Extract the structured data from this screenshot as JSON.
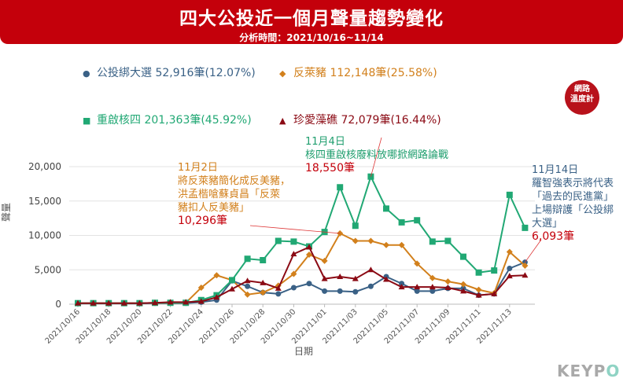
{
  "header": {
    "title": "四大公投近一個月聲量趨勢變化",
    "subtitle": "分析時間：2021/10/16~11/14"
  },
  "badge": {
    "line1": "網路",
    "line2": "溫度計"
  },
  "brand": {
    "text_a": "KEYP",
    "text_b": "O"
  },
  "annotations": [
    {
      "date": "11月2日",
      "lines": [
        "將反萊豬簡化成反美豬，",
        "洪孟楷嗆蘇貞昌「反萊",
        "豬扣人反美豬」"
      ],
      "count": "10,296筆",
      "color": "#d2801c"
    },
    {
      "date": "11月4日",
      "lines": [
        "核四重啟核廢料放哪掀網路論戰"
      ],
      "count": "18,550筆",
      "color": "#1f9e6e"
    },
    {
      "date": "11月14日",
      "lines": [
        "羅智強表示將代表",
        "「過去的民進黨」",
        "上場辯護「公投綁",
        "大選」"
      ],
      "count": "6,093筆",
      "color": "#3a6186"
    }
  ],
  "chart_data": {
    "type": "line",
    "title": "四大公投近一個月聲量趨勢變化",
    "xlabel": "日期",
    "ylabel": "聲量",
    "ylim": [
      0,
      20000
    ],
    "yticks": [
      0,
      5000,
      10000,
      15000,
      20000
    ],
    "ytick_labels": [
      "0",
      "5,000",
      "10,000",
      "15,000",
      "20,000"
    ],
    "x": [
      "2021/10/16",
      "2021/10/17",
      "2021/10/18",
      "2021/10/19",
      "2021/10/20",
      "2021/10/21",
      "2021/10/22",
      "2021/10/23",
      "2021/10/24",
      "2021/10/25",
      "2021/10/26",
      "2021/10/27",
      "2021/10/28",
      "2021/10/29",
      "2021/10/30",
      "2021/10/31",
      "2021/11/01",
      "2021/11/02",
      "2021/11/03",
      "2021/11/04",
      "2021/11/05",
      "2021/11/06",
      "2021/11/07",
      "2021/11/08",
      "2021/11/09",
      "2021/11/10",
      "2021/11/11",
      "2021/11/12",
      "2021/11/13",
      "2021/11/14"
    ],
    "xtick_labels": [
      "2021/10/16",
      "2021/10/18",
      "2021/10/20",
      "2021/10/22",
      "2021/10/24",
      "2021/10/26",
      "2021/10/28",
      "2021/10/30",
      "2021/11/01",
      "2021/11/03",
      "2021/11/05",
      "2021/11/07",
      "2021/11/09",
      "2021/11/11",
      "2021/11/13"
    ],
    "grid": true,
    "legend_position": "top",
    "series": [
      {
        "name": "公投綁大選",
        "summary": "52,916筆(12.07%)",
        "color": "#3a6186",
        "marker": "circle",
        "values": [
          100,
          100,
          100,
          100,
          100,
          150,
          150,
          150,
          300,
          600,
          3400,
          2600,
          1700,
          1500,
          2400,
          3000,
          1900,
          1900,
          1800,
          2600,
          4000,
          3000,
          1900,
          1900,
          2300,
          2300,
          1300,
          1500,
          5200,
          6093
        ]
      },
      {
        "name": "反萊豬",
        "summary": "112,148筆(25.58%)",
        "color": "#d2801c",
        "marker": "diamond",
        "values": [
          150,
          150,
          150,
          150,
          150,
          200,
          200,
          200,
          2400,
          4200,
          3500,
          1400,
          1700,
          2700,
          4400,
          7200,
          6300,
          10296,
          9200,
          9200,
          8600,
          8600,
          5900,
          3800,
          3300,
          2900,
          2100,
          1600,
          7600,
          5600
        ]
      },
      {
        "name": "重啟核四",
        "summary": "201,363筆(45.92%)",
        "color": "#21a874",
        "marker": "square",
        "values": [
          150,
          150,
          150,
          150,
          150,
          200,
          200,
          200,
          600,
          1300,
          3500,
          6600,
          6400,
          9200,
          9100,
          8400,
          10500,
          17000,
          11400,
          18550,
          13900,
          11900,
          12200,
          9100,
          9200,
          6900,
          4600,
          4900,
          15900,
          11100
        ]
      },
      {
        "name": "珍愛藻礁",
        "summary": "72,079筆(16.44%)",
        "color": "#8b0a14",
        "marker": "triangle",
        "values": [
          150,
          150,
          150,
          150,
          150,
          200,
          300,
          300,
          400,
          1000,
          2200,
          3400,
          3100,
          2300,
          7300,
          8300,
          3700,
          4000,
          3700,
          5000,
          3600,
          2500,
          2500,
          2500,
          2400,
          1900,
          1300,
          1500,
          4100,
          4200
        ]
      }
    ]
  }
}
